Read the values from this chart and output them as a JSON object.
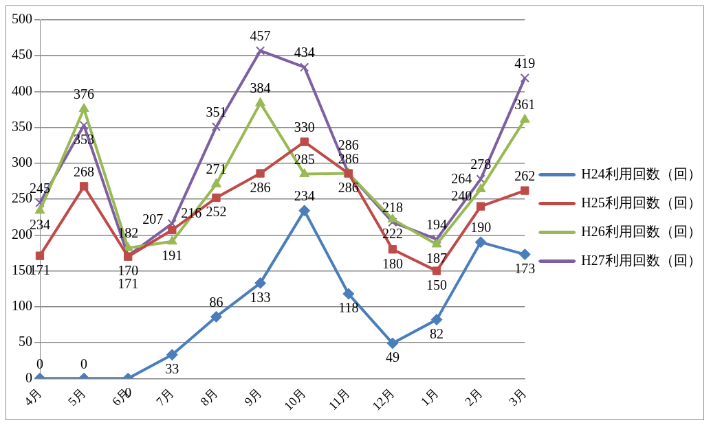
{
  "chart_data": {
    "type": "line",
    "categories": [
      "4月",
      "5月",
      "6月",
      "7月",
      "8月",
      "9月",
      "10月",
      "11月",
      "12月",
      "1月",
      "2月",
      "3月"
    ],
    "series": [
      {
        "name": "H24利用回数（回）",
        "color": "#4a7ebb",
        "marker": "diamond",
        "values": [
          0,
          0,
          0,
          33,
          86,
          133,
          234,
          118,
          49,
          82,
          190,
          173
        ]
      },
      {
        "name": "H25利用回数（回）",
        "color": "#be4b48",
        "marker": "square",
        "values": [
          171,
          268,
          170,
          207,
          252,
          286,
          330,
          286,
          180,
          150,
          240,
          262
        ]
      },
      {
        "name": "H26利用回数（回）",
        "color": "#98b954",
        "marker": "triangle",
        "values": [
          234,
          376,
          182,
          191,
          271,
          384,
          285,
          286,
          222,
          187,
          264,
          361
        ]
      },
      {
        "name": "H27利用回数（回）",
        "color": "#7d60a0",
        "marker": "cross",
        "values": [
          245,
          353,
          171,
          216,
          351,
          457,
          434,
          286,
          218,
          194,
          278,
          419
        ]
      }
    ],
    "ylim": [
      0,
      500
    ],
    "yticks": [
      0,
      50,
      100,
      150,
      200,
      250,
      300,
      350,
      400,
      450,
      500
    ],
    "grid": "y",
    "legend": "right",
    "data_labels": true
  }
}
